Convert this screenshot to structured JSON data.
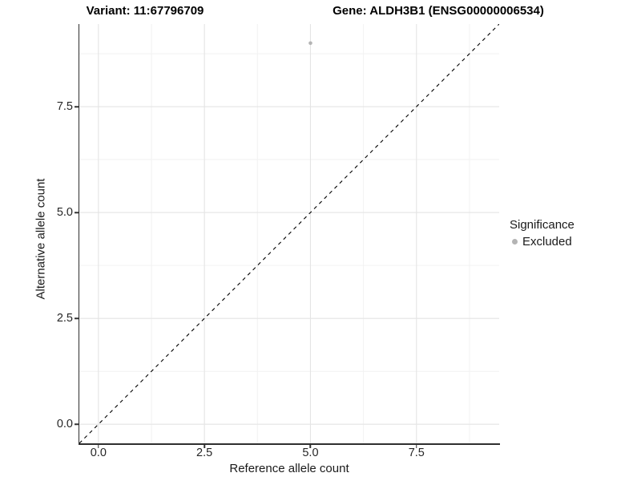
{
  "chart_data": {
    "type": "scatter",
    "title_left": "Variant: 11:67796709",
    "title_right": "Gene: ALDH3B1 (ENSG00000006534)",
    "xlabel": "Reference allele count",
    "ylabel": "Alternative allele count",
    "xlim": [
      -0.45,
      9.45
    ],
    "ylim": [
      -0.45,
      9.45
    ],
    "x_major_ticks": [
      0,
      2.5,
      5,
      7.5
    ],
    "y_major_ticks": [
      0,
      2.5,
      5,
      7.5
    ],
    "x_tick_labels": [
      "0.0",
      "2.5",
      "5.0",
      "7.5"
    ],
    "y_tick_labels": [
      "0.0",
      "2.5",
      "5.0",
      "7.5"
    ],
    "x_minor_ticks": [
      1.25,
      3.75,
      6.25,
      8.75
    ],
    "y_minor_ticks": [
      1.25,
      3.75,
      6.25,
      8.75
    ],
    "grid": true,
    "series": [
      {
        "name": "Excluded",
        "color": "#b4b4b4",
        "points": [
          {
            "x": 5,
            "y": 9
          }
        ]
      }
    ],
    "reference_line": {
      "type": "identity",
      "style": "dashed",
      "color": "#000000",
      "from": [
        -0.45,
        -0.45
      ],
      "to": [
        9.45,
        9.45
      ]
    },
    "legend": {
      "title": "Significance",
      "position": "right",
      "items": [
        {
          "label": "Excluded",
          "color": "#b4b4b4"
        }
      ]
    }
  },
  "colors": {
    "background": "#ffffff",
    "grid_major": "#e4e4e4",
    "grid_minor": "#f2f2f2",
    "axis_line": "#2f2f2f",
    "tick": "#333333",
    "text": "#1a1a1a",
    "point": "#b4b4b4",
    "dashed_line": "#000000"
  }
}
